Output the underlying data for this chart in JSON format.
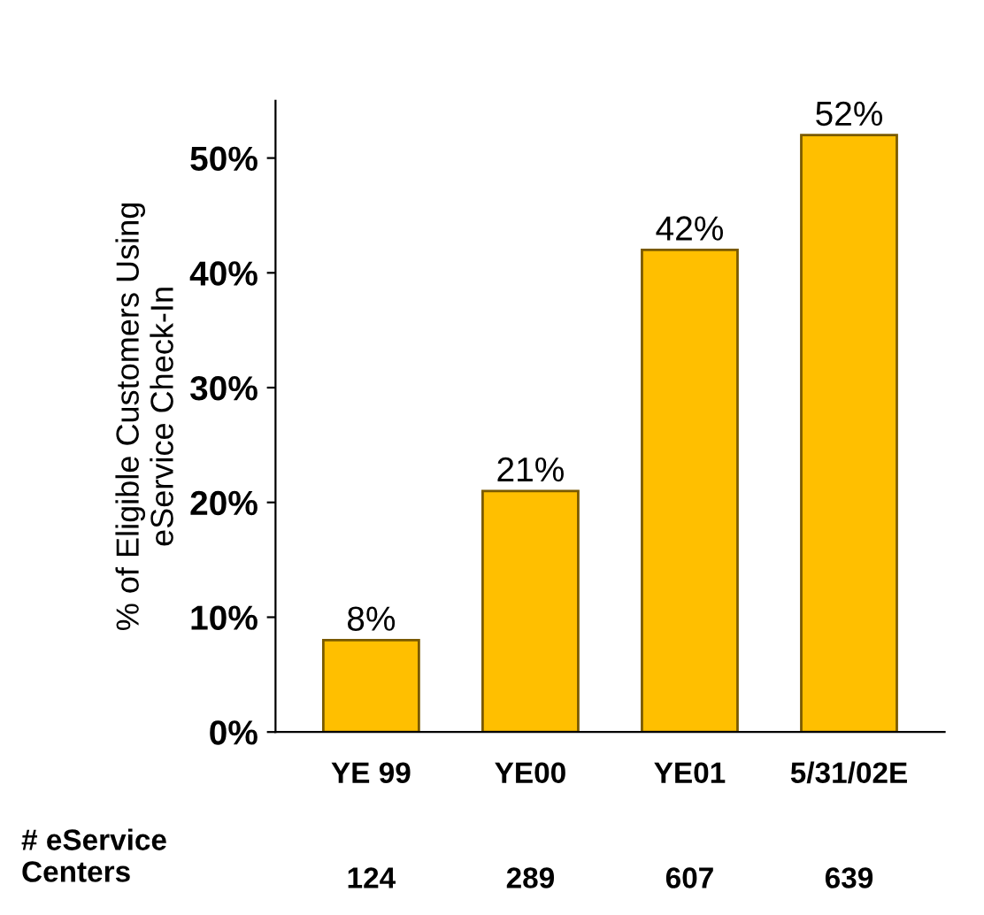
{
  "chart_data": {
    "type": "bar",
    "ylabel": "% of Eligible Customers Using\neService Check-In",
    "categories": [
      "YE 99",
      "YE00",
      "YE01",
      "5/31/02E"
    ],
    "values": [
      8,
      21,
      42,
      52
    ],
    "value_labels": [
      "8%",
      "21%",
      "42%",
      "52%"
    ],
    "color": "#ffbf00",
    "ylim": [
      0,
      55
    ],
    "yticks": [
      {
        "value": 0,
        "label": "0%"
      },
      {
        "value": 10,
        "label": "10%"
      },
      {
        "value": 20,
        "label": "20%"
      },
      {
        "value": 30,
        "label": "30%"
      },
      {
        "value": 40,
        "label": "40%"
      },
      {
        "value": 50,
        "label": "50%"
      }
    ],
    "grid": false,
    "annotations": [
      "# eService\nCenters",
      "124",
      "289",
      "607",
      "639"
    ]
  }
}
